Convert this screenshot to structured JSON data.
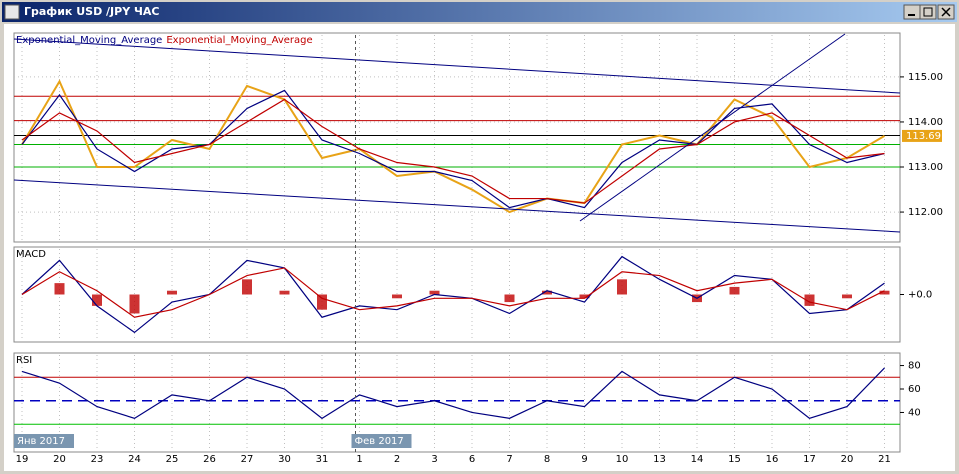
{
  "window_title": "График USD /JPY ЧАС",
  "chart_data": [
    {
      "type": "line",
      "categories": [
        "19",
        "20",
        "23",
        "24",
        "25",
        "26",
        "27",
        "30",
        "31",
        "1",
        "2",
        "3",
        "6",
        "7",
        "8",
        "9",
        "10",
        "13",
        "14",
        "15",
        "16",
        "17",
        "20",
        "21"
      ],
      "period_labels": [
        {
          "label": "Янв 2017",
          "category": 0
        },
        {
          "label": "Фев 2017",
          "category": 9
        }
      ],
      "ylim": [
        111.38,
        115.93
      ],
      "yticks": [
        {
          "value": 112,
          "label": "112.00"
        },
        {
          "value": 113,
          "label": "113.00"
        },
        {
          "value": 114,
          "label": "114.00"
        },
        {
          "value": 115,
          "label": "115.00"
        }
      ],
      "grid": true,
      "series": [
        {
          "color": "#e8a317",
          "values": [
            113.5,
            114.9,
            113.0,
            113.0,
            113.6,
            113.4,
            114.8,
            114.5,
            113.2,
            113.4,
            112.8,
            112.9,
            112.5,
            112.0,
            112.3,
            112.2,
            113.5,
            113.7,
            113.5,
            114.5,
            114.1,
            113.0,
            113.2,
            113.69
          ]
        },
        {
          "name": "Exponential_Moving_Average",
          "color": "#000080",
          "values": [
            113.5,
            114.6,
            113.4,
            112.9,
            113.4,
            113.5,
            114.3,
            114.7,
            113.6,
            113.3,
            112.9,
            112.9,
            112.7,
            112.1,
            112.3,
            112.1,
            113.1,
            113.6,
            113.5,
            114.3,
            114.4,
            113.5,
            113.1,
            113.3
          ]
        },
        {
          "name": "Exponential_Moving_Average",
          "color": "#c00000",
          "values": [
            113.6,
            114.2,
            113.8,
            113.1,
            113.3,
            113.5,
            114.0,
            114.5,
            113.9,
            113.4,
            113.1,
            113.0,
            112.8,
            112.3,
            112.3,
            112.2,
            112.8,
            113.4,
            113.5,
            114.0,
            114.2,
            113.7,
            113.2,
            113.3
          ]
        }
      ],
      "levels": [
        {
          "value": 114.57,
          "color": "#c00000"
        },
        {
          "value": 114.03,
          "color": "#c00000"
        },
        {
          "value": 113.7,
          "color": "#000000"
        },
        {
          "value": 113.5,
          "color": "#00b000"
        },
        {
          "value": 113.0,
          "color": "#00b000"
        }
      ]
    },
    {
      "type": "line",
      "title": "MACD",
      "ylim": [
        -1.2,
        1.2
      ],
      "yticks": [
        {
          "value": 0,
          "label": "+0.0"
        }
      ],
      "grid": true,
      "series": [
        {
          "kind": "bar",
          "color": "#c00000",
          "values": [
            0.0,
            0.3,
            -0.3,
            -0.5,
            0.1,
            0.0,
            0.4,
            0.1,
            -0.4,
            0.0,
            -0.1,
            0.1,
            0.0,
            -0.2,
            0.1,
            -0.1,
            0.4,
            0.0,
            -0.2,
            0.2,
            0.0,
            -0.3,
            -0.1,
            0.1
          ]
        },
        {
          "color": "#000080",
          "values": [
            0.0,
            0.9,
            -0.3,
            -1.0,
            -0.2,
            0.0,
            0.9,
            0.7,
            -0.6,
            -0.3,
            -0.4,
            0.0,
            -0.1,
            -0.5,
            0.1,
            -0.2,
            1.0,
            0.4,
            -0.1,
            0.5,
            0.4,
            -0.5,
            -0.4,
            0.3
          ]
        },
        {
          "color": "#c00000",
          "values": [
            0.0,
            0.6,
            0.1,
            -0.6,
            -0.4,
            0.0,
            0.5,
            0.7,
            -0.1,
            -0.4,
            -0.3,
            -0.1,
            -0.1,
            -0.3,
            -0.1,
            -0.1,
            0.6,
            0.5,
            0.1,
            0.3,
            0.4,
            -0.2,
            -0.4,
            0.1
          ]
        }
      ]
    },
    {
      "type": "line",
      "title": "RSI",
      "ylim": [
        8,
        89
      ],
      "yticks": [
        40,
        60,
        80
      ],
      "grid": true,
      "series": [
        {
          "color": "#000080",
          "values": [
            75,
            65,
            45,
            35,
            55,
            50,
            70,
            60,
            35,
            55,
            45,
            50,
            40,
            35,
            50,
            45,
            75,
            55,
            50,
            70,
            60,
            35,
            45,
            78
          ]
        }
      ],
      "levels": [
        {
          "value": 70,
          "color": "#c00000"
        },
        {
          "value": 50,
          "color": "#0000c0",
          "style": "dashed"
        },
        {
          "value": 30,
          "color": "#00c000"
        }
      ]
    }
  ]
}
